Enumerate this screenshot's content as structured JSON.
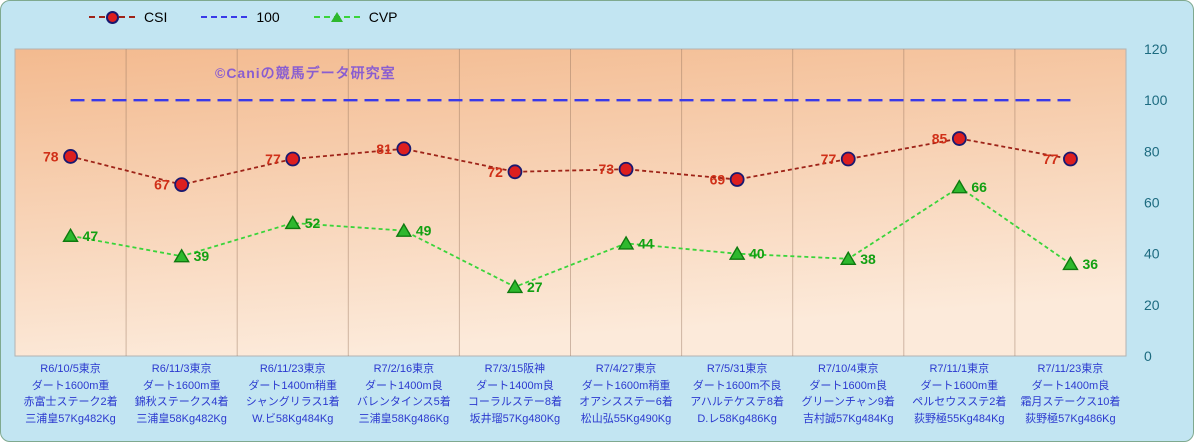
{
  "watermark": "©Caniの競馬データ研究室",
  "legend": [
    {
      "label": "CSI"
    },
    {
      "label": "100"
    },
    {
      "label": "CVP"
    }
  ],
  "colors": {
    "outer_bg": "#c2e5f2",
    "plot_bg_top": "#f3ba8f",
    "plot_bg_bottom": "#fceada",
    "plot_border": "#b3b3b3",
    "gridline": "rgba(150,118,95,0.45)",
    "csi_line": "#9e2318",
    "csi_marker_fill": "#dd1f1f",
    "csi_marker_stroke": "#191970",
    "csi_label": "#d03018",
    "ref_line": "#3939e8",
    "cvp_line": "#3ad43a",
    "cvp_marker_fill": "#2eb82e",
    "cvp_marker_stroke": "#0f7a0f",
    "cvp_label": "#12a012",
    "axis_text": "#1d6b80",
    "xlabel_text": "#2b39cf",
    "watermark_text": "#8a5ed0"
  },
  "chart_data": {
    "type": "line",
    "title": "",
    "xlabel": "",
    "ylabel": "",
    "ylim": [
      0,
      120
    ],
    "yticks": [
      0,
      20,
      40,
      60,
      80,
      100,
      120
    ],
    "grid": "vertical",
    "legend_position": "top",
    "categories": [
      [
        "R6/10/5東京",
        "ダート1600m重",
        "赤富士ステーク2着",
        "三浦皇57Kg482Kg"
      ],
      [
        "R6/11/3東京",
        "ダート1600m重",
        "錦秋ステークス4着",
        "三浦皇58Kg482Kg"
      ],
      [
        "R6/11/23東京",
        "ダート1400m稍重",
        "シャングリラス1着",
        "W.ビ58Kg484Kg"
      ],
      [
        "R7/2/16東京",
        "ダート1400m良",
        "バレンタインス5着",
        "三浦皇58Kg486Kg"
      ],
      [
        "R7/3/15阪神",
        "ダート1400m良",
        "コーラルステー8着",
        "坂井瑠57Kg480Kg"
      ],
      [
        "R7/4/27東京",
        "ダート1600m稍重",
        "オアシスステー6着",
        "松山弘55Kg490Kg"
      ],
      [
        "R7/5/31東京",
        "ダート1600m不良",
        "アハルテケステ8着",
        "D.レ58Kg486Kg"
      ],
      [
        "R7/10/4東京",
        "ダート1600m良",
        "グリーンチャン9着",
        "吉村誠57Kg484Kg"
      ],
      [
        "R7/11/1東京",
        "ダート1600m重",
        "ペルセウスステ2着",
        "荻野極55Kg484Kg"
      ],
      [
        "R7/11/23東京",
        "ダート1400m良",
        "霜月ステークス10着",
        "荻野極57Kg486Kg"
      ]
    ],
    "series": [
      {
        "name": "CSI",
        "values": [
          78,
          67,
          77,
          81,
          72,
          73,
          69,
          77,
          85,
          77
        ]
      },
      {
        "name": "100",
        "values": [
          100,
          100,
          100,
          100,
          100,
          100,
          100,
          100,
          100,
          100
        ]
      },
      {
        "name": "CVP",
        "values": [
          47,
          39,
          52,
          49,
          27,
          44,
          40,
          38,
          66,
          36
        ]
      }
    ]
  }
}
